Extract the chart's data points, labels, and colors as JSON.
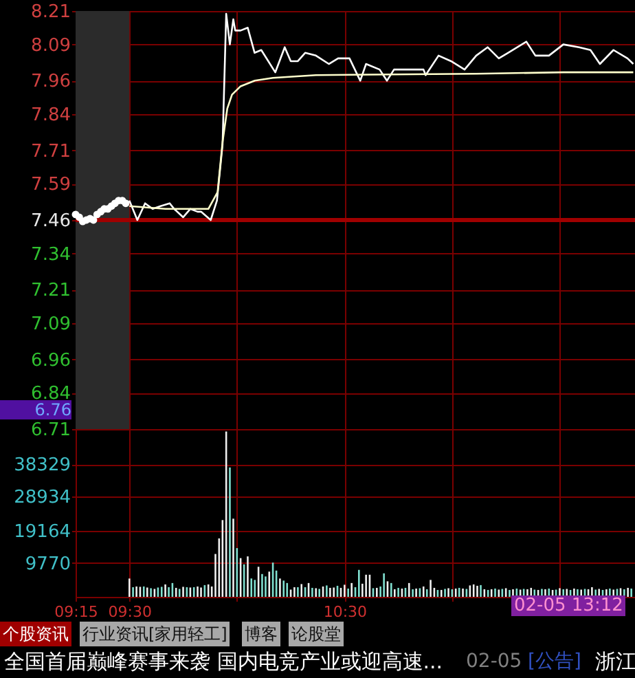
{
  "chart_data": [
    {
      "type": "line",
      "xlim": [
        9.25,
        11.85
      ],
      "xticks": [
        {
          "value": 9.25,
          "label": null
        },
        {
          "value": 9.5,
          "label": null
        },
        {
          "value": 10,
          "label": null
        },
        {
          "value": 10.5,
          "label": null
        },
        {
          "value": 11,
          "label": null
        },
        {
          "value": 11.5,
          "label": null
        }
      ],
      "ylim": [
        6.71,
        8.21
      ],
      "yticks": [
        6.71,
        6.84,
        6.96,
        7.09,
        7.21,
        7.34,
        7.46,
        7.59,
        7.71,
        7.84,
        7.96,
        8.09,
        8.21
      ],
      "grid": true,
      "tick_labels": "y",
      "ref_lines": [
        {
          "axis": "y",
          "value": 7.46,
          "color": "#a00000"
        }
      ],
      "bands": [
        {
          "axis": "x",
          "from": 9.25,
          "to": 9.5,
          "color": "#2b2b2b"
        }
      ],
      "annotations": [
        "6.76"
      ],
      "series": [
        {
          "type": "scatter",
          "marker": "circle",
          "color": "#ffffff",
          "x": [
            9.25,
            9.267,
            9.283,
            9.3,
            9.317,
            9.333,
            9.35,
            9.367,
            9.383,
            9.4,
            9.417,
            9.433,
            9.45,
            9.467,
            9.483
          ],
          "values": [
            7.48,
            7.47,
            7.455,
            7.46,
            7.465,
            7.46,
            7.48,
            7.49,
            7.5,
            7.5,
            7.51,
            7.52,
            7.53,
            7.53,
            7.52
          ]
        },
        {
          "type": "line",
          "color": "#ffffff",
          "x": [
            9.5,
            9.537,
            9.573,
            9.608,
            9.645,
            9.687,
            9.708,
            9.75,
            9.783,
            9.817,
            9.833,
            9.878,
            9.907,
            9.933,
            9.95,
            9.967,
            9.983,
            9.992,
            10.017,
            10.05,
            10.082,
            10.113,
            10.178,
            10.222,
            10.25,
            10.283,
            10.317,
            10.367,
            10.427,
            10.47,
            10.523,
            10.573,
            10.6,
            10.663,
            10.697,
            10.73,
            10.867,
            10.877,
            10.937,
            10.995,
            11.058,
            11.112,
            11.165,
            11.217,
            11.26,
            11.345,
            11.387,
            11.45,
            11.517,
            11.59,
            11.643,
            11.687,
            11.75,
            11.815,
            11.842
          ],
          "values": [
            7.53,
            7.46,
            7.52,
            7.5,
            7.51,
            7.52,
            7.5,
            7.47,
            7.5,
            7.49,
            7.49,
            7.46,
            7.53,
            7.73,
            8.2,
            8.09,
            8.18,
            8.14,
            8.14,
            8.15,
            8.06,
            8.07,
            7.99,
            8.08,
            8.03,
            8.03,
            8.06,
            8.05,
            8.02,
            8.04,
            8.04,
            7.96,
            8.02,
            8,
            7.96,
            8,
            8,
            7.98,
            8.05,
            8.03,
            8,
            8.05,
            8.08,
            8.04,
            8.06,
            8.1,
            8.05,
            8.05,
            8.09,
            8.08,
            8.07,
            8.02,
            8.07,
            8.04,
            8.02
          ]
        },
        {
          "type": "line",
          "color": "#ffffcc",
          "x": [
            9.5,
            9.667,
            9.867,
            9.91,
            9.933,
            9.955,
            9.977,
            10.017,
            10.083,
            10.167,
            10.367,
            11.112,
            11.517,
            11.842
          ],
          "values": [
            7.51,
            7.5,
            7.5,
            7.56,
            7.74,
            7.86,
            7.91,
            7.94,
            7.96,
            7.97,
            7.98,
            7.985,
            7.99,
            7.99
          ]
        }
      ]
    },
    {
      "type": "bar",
      "xlim": [
        9.25,
        11.85
      ],
      "xticks": [
        {
          "value": 9.25,
          "label": "09:15"
        },
        {
          "value": 9.5,
          "label": "09:30"
        },
        {
          "value": 10,
          "label": null
        },
        {
          "value": 10.5,
          "label": "10:30"
        },
        {
          "value": 11,
          "label": null
        },
        {
          "value": 11.5,
          "label": null
        }
      ],
      "ylim": [
        0,
        48500
      ],
      "yticks": [
        9770,
        19164,
        28934,
        38329
      ],
      "grid": true,
      "annotations": [
        "02-05 13:12",
        "个股资讯",
        "行业资讯[家用轻工]",
        "博客",
        "论股堂",
        "全国首届巅峰赛事来袭 国内电竞产业或迎高速...",
        "02-05",
        "[公告]",
        "浙江"
      ],
      "x": [
        9.5,
        9.517,
        9.533,
        9.55,
        9.567,
        9.583,
        9.6,
        9.617,
        9.633,
        9.65,
        9.667,
        9.683,
        9.7,
        9.717,
        9.733,
        9.75,
        9.767,
        9.783,
        9.8,
        9.817,
        9.833,
        9.85,
        9.867,
        9.883,
        9.9,
        9.917,
        9.933,
        9.95,
        9.967,
        9.983,
        10,
        10.017,
        10.033,
        10.05,
        10.067,
        10.083,
        10.1,
        10.117,
        10.133,
        10.15,
        10.167,
        10.183,
        10.2,
        10.217,
        10.233,
        10.25,
        10.267,
        10.283,
        10.3,
        10.317,
        10.333,
        10.35,
        10.367,
        10.383,
        10.4,
        10.417,
        10.433,
        10.45,
        10.467,
        10.483,
        10.5,
        10.517,
        10.533,
        10.55,
        10.567,
        10.583,
        10.6,
        10.617,
        10.633,
        10.65,
        10.667,
        10.683,
        10.7,
        10.717,
        10.733,
        10.75,
        10.767,
        10.783,
        10.8,
        10.817,
        10.833,
        10.85,
        10.867,
        10.883,
        10.9,
        10.917,
        10.933,
        10.95,
        10.967,
        10.983,
        11,
        11.017,
        11.033,
        11.05,
        11.067,
        11.083,
        11.1,
        11.117,
        11.133,
        11.15,
        11.167,
        11.183,
        11.2,
        11.217,
        11.233,
        11.25,
        11.267,
        11.283,
        11.3,
        11.317,
        11.333,
        11.35,
        11.367,
        11.383,
        11.4,
        11.417,
        11.433,
        11.45,
        11.467,
        11.483,
        11.5,
        11.517,
        11.533,
        11.55,
        11.567,
        11.583,
        11.6,
        11.617,
        11.633,
        11.65,
        11.667,
        11.683,
        11.7,
        11.717,
        11.733,
        11.75,
        11.767,
        11.783,
        11.8,
        11.817,
        11.833
      ],
      "values": [
        5300,
        2800,
        3000,
        2900,
        3000,
        2700,
        2500,
        2300,
        2700,
        2900,
        3600,
        2800,
        4000,
        2600,
        2300,
        2900,
        2800,
        2700,
        2800,
        3000,
        2700,
        3400,
        3600,
        3000,
        12400,
        16900,
        22200,
        47800,
        37400,
        22600,
        14100,
        11200,
        9400,
        11700,
        5300,
        4900,
        8700,
        6600,
        5900,
        7300,
        9900,
        7600,
        5300,
        4700,
        4000,
        2100,
        2800,
        2800,
        3700,
        2800,
        4000,
        2600,
        2500,
        2300,
        3000,
        3300,
        2600,
        2700,
        3200,
        2600,
        3500,
        2400,
        4000,
        2800,
        7800,
        3800,
        6400,
        6400,
        2500,
        2600,
        3000,
        6800,
        4500,
        4000,
        2200,
        2600,
        2400,
        2600,
        4000,
        2200,
        2400,
        2500,
        3000,
        2200,
        4900,
        2600,
        2000,
        2000,
        2300,
        2500,
        2200,
        2400,
        2600,
        2400,
        2300,
        3300,
        3600,
        3200,
        3400,
        2200,
        2000,
        2200,
        2400,
        2100,
        2300,
        2500,
        2000,
        2200,
        2400,
        2100,
        2300,
        2200,
        2600,
        2100,
        2000,
        2300,
        2200,
        2400,
        2000,
        2100,
        2500,
        2200,
        2300,
        2000,
        2400,
        2200,
        2100,
        2300,
        2200,
        2800,
        2100,
        2300,
        2000,
        2200,
        2400,
        2100,
        2300,
        2500,
        2200,
        2600,
        2400
      ],
      "colors": [
        "#f0f0f0",
        "#80e0d0",
        "#f0f0f0",
        "#f0f0f0",
        "#80e0d0",
        "#f0f0f0",
        "#80e0d0",
        "#f0f0f0",
        "#80e0d0",
        "#80e0d0",
        "#f0f0f0",
        "#80e0d0",
        "#80e0d0",
        "#f0f0f0",
        "#80e0d0",
        "#f0f0f0",
        "#80e0d0",
        "#f0f0f0",
        "#80e0d0",
        "#f0f0f0",
        "#f0f0f0",
        "#80e0d0",
        "#f0f0f0",
        "#f0f0f0",
        "#f0f0f0",
        "#f0f0f0",
        "#f0f0f0",
        "#f0f0f0",
        "#80e0d0",
        "#f0f0f0",
        "#80e0d0",
        "#f0f0f0",
        "#80e0d0",
        "#f0f0f0",
        "#80e0d0",
        "#80e0d0",
        "#f0f0f0",
        "#80e0d0",
        "#80e0d0",
        "#f0f0f0",
        "#80e0d0",
        "#80e0d0",
        "#f0f0f0",
        "#80e0d0",
        "#80e0d0",
        "#f0f0f0",
        "#f0f0f0",
        "#80e0d0",
        "#f0f0f0",
        "#80e0d0",
        "#f0f0f0",
        "#80e0d0",
        "#f0f0f0",
        "#80e0d0",
        "#f0f0f0",
        "#80e0d0",
        "#f0f0f0",
        "#f0f0f0",
        "#80e0d0",
        "#f0f0f0",
        "#f0f0f0",
        "#80e0d0",
        "#f0f0f0",
        "#80e0d0",
        "#80e0d0",
        "#f0f0f0",
        "#f0f0f0",
        "#f0f0f0",
        "#80e0d0",
        "#f0f0f0",
        "#80e0d0",
        "#80e0d0",
        "#f0f0f0",
        "#80e0d0",
        "#f0f0f0",
        "#80e0d0",
        "#f0f0f0",
        "#80e0d0",
        "#f0f0f0",
        "#80e0d0",
        "#f0f0f0",
        "#80e0d0",
        "#f0f0f0",
        "#80e0d0",
        "#f0f0f0",
        "#f0f0f0",
        "#80e0d0",
        "#f0f0f0",
        "#80e0d0",
        "#f0f0f0",
        "#80e0d0",
        "#f0f0f0",
        "#80e0d0",
        "#f0f0f0",
        "#80e0d0",
        "#f0f0f0",
        "#f0f0f0",
        "#f0f0f0",
        "#80e0d0",
        "#f0f0f0",
        "#80e0d0",
        "#f0f0f0",
        "#80e0d0",
        "#f0f0f0",
        "#80e0d0",
        "#f0f0f0",
        "#80e0d0",
        "#f0f0f0",
        "#80e0d0",
        "#f0f0f0",
        "#80e0d0",
        "#f0f0f0",
        "#f0f0f0",
        "#80e0d0",
        "#f0f0f0",
        "#80e0d0",
        "#f0f0f0",
        "#80e0d0",
        "#f0f0f0",
        "#80e0d0",
        "#f0f0f0",
        "#80e0d0",
        "#f0f0f0",
        "#80e0d0",
        "#f0f0f0",
        "#80e0d0",
        "#f0f0f0",
        "#80e0d0",
        "#f0f0f0",
        "#f0f0f0",
        "#80e0d0",
        "#f0f0f0",
        "#80e0d0",
        "#f0f0f0",
        "#80e0d0",
        "#f0f0f0",
        "#80e0d0",
        "#f0f0f0",
        "#80e0d0",
        "#f0f0f0",
        "#80e0d0"
      ]
    }
  ]
}
